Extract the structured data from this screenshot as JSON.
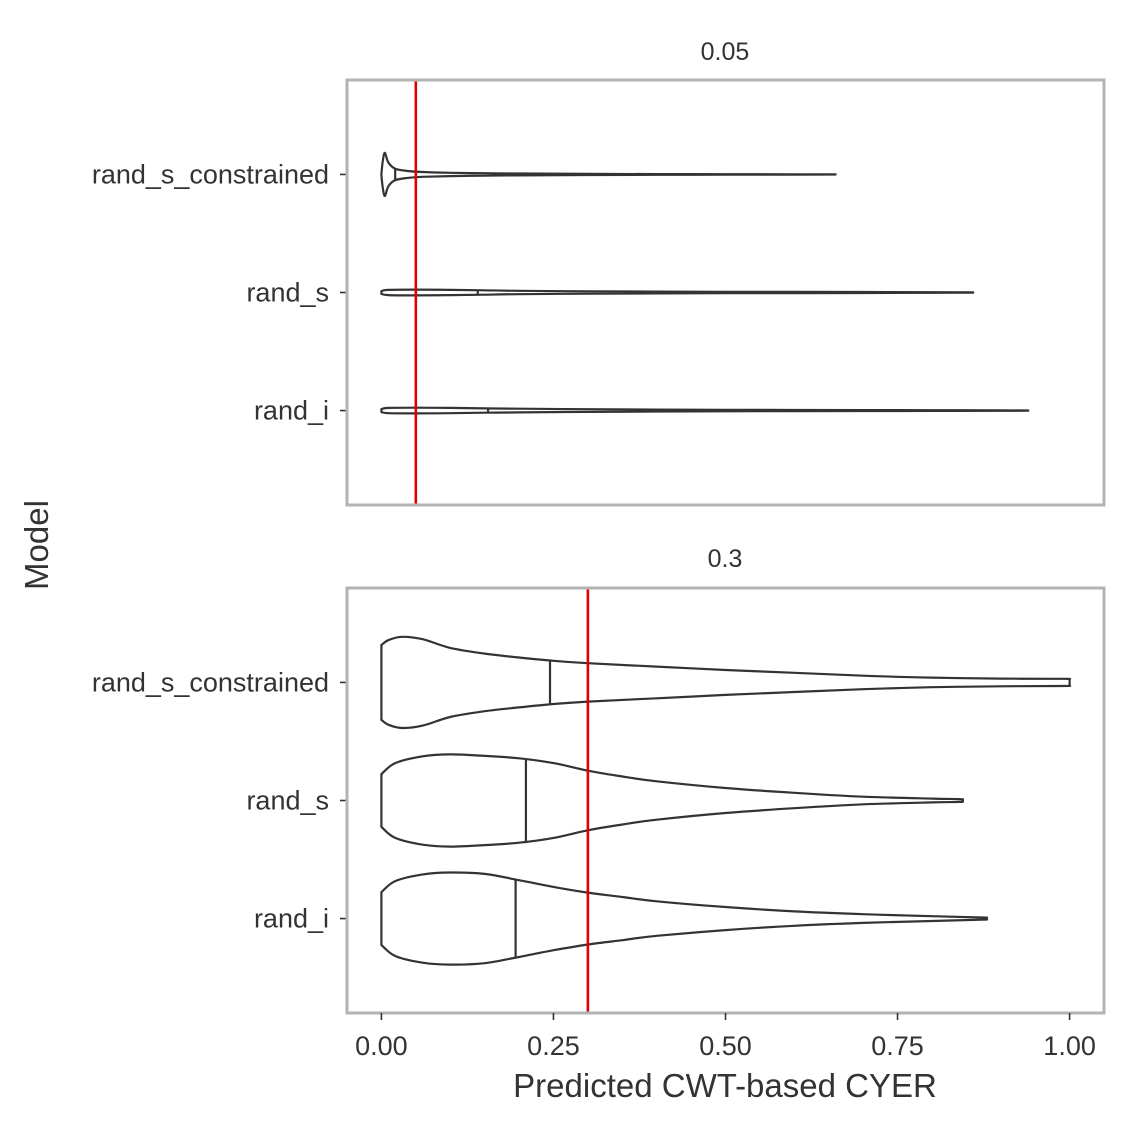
{
  "chart_data": {
    "type": "violin",
    "orientation": "horizontal",
    "xlabel": "Predicted CWT-based CYER",
    "ylabel": "Model",
    "xlim": [
      -0.05,
      1.05
    ],
    "x_ticks": [
      0.0,
      0.25,
      0.5,
      0.75,
      1.0
    ],
    "x_tick_labels": [
      "0.00",
      "0.25",
      "0.50",
      "0.75",
      "1.00"
    ],
    "categories": [
      "rand_s_constrained",
      "rand_s",
      "rand_i"
    ],
    "grid": false,
    "panels": [
      {
        "title": "0.05",
        "reference_line": 0.05,
        "reference_color": "#e00000",
        "violins": [
          {
            "category": "rand_s_constrained",
            "median": 0.02,
            "profile": [
              [
                0.0,
                0.01
              ],
              [
                0.002,
                0.28
              ],
              [
                0.005,
                0.45
              ],
              [
                0.01,
                0.25
              ],
              [
                0.02,
                0.12
              ],
              [
                0.04,
                0.07
              ],
              [
                0.06,
                0.05
              ],
              [
                0.1,
                0.035
              ],
              [
                0.15,
                0.025
              ],
              [
                0.2,
                0.02
              ],
              [
                0.3,
                0.012
              ],
              [
                0.4,
                0.008
              ],
              [
                0.5,
                0.006
              ],
              [
                0.6,
                0.004
              ],
              [
                0.66,
                0.002
              ]
            ]
          },
          {
            "category": "rand_s",
            "median": 0.14,
            "profile": [
              [
                0.0,
                0.03
              ],
              [
                0.01,
                0.055
              ],
              [
                0.05,
                0.06
              ],
              [
                0.1,
                0.055
              ],
              [
                0.15,
                0.045
              ],
              [
                0.2,
                0.035
              ],
              [
                0.3,
                0.025
              ],
              [
                0.4,
                0.018
              ],
              [
                0.5,
                0.015
              ],
              [
                0.6,
                0.012
              ],
              [
                0.7,
                0.01
              ],
              [
                0.8,
                0.007
              ],
              [
                0.86,
                0.003
              ]
            ]
          },
          {
            "category": "rand_i",
            "median": 0.155,
            "profile": [
              [
                0.0,
                0.03
              ],
              [
                0.01,
                0.055
              ],
              [
                0.05,
                0.06
              ],
              [
                0.1,
                0.055
              ],
              [
                0.15,
                0.045
              ],
              [
                0.2,
                0.038
              ],
              [
                0.3,
                0.028
              ],
              [
                0.4,
                0.02
              ],
              [
                0.5,
                0.015
              ],
              [
                0.6,
                0.012
              ],
              [
                0.7,
                0.01
              ],
              [
                0.8,
                0.008
              ],
              [
                0.9,
                0.005
              ],
              [
                0.94,
                0.002
              ]
            ]
          }
        ]
      },
      {
        "title": "0.3",
        "reference_line": 0.3,
        "reference_color": "#e00000",
        "violins": [
          {
            "category": "rand_s_constrained",
            "median": 0.245,
            "profile": [
              [
                0.0,
                0.78
              ],
              [
                0.01,
                0.88
              ],
              [
                0.03,
                0.95
              ],
              [
                0.06,
                0.9
              ],
              [
                0.1,
                0.72
              ],
              [
                0.15,
                0.6
              ],
              [
                0.2,
                0.52
              ],
              [
                0.25,
                0.45
              ],
              [
                0.3,
                0.4
              ],
              [
                0.4,
                0.33
              ],
              [
                0.5,
                0.26
              ],
              [
                0.6,
                0.2
              ],
              [
                0.7,
                0.14
              ],
              [
                0.8,
                0.1
              ],
              [
                0.9,
                0.08
              ],
              [
                0.99,
                0.075
              ],
              [
                1.0,
                0.07
              ]
            ]
          },
          {
            "category": "rand_s",
            "median": 0.21,
            "profile": [
              [
                0.0,
                0.55
              ],
              [
                0.02,
                0.78
              ],
              [
                0.06,
                0.92
              ],
              [
                0.1,
                0.96
              ],
              [
                0.15,
                0.93
              ],
              [
                0.2,
                0.88
              ],
              [
                0.25,
                0.78
              ],
              [
                0.3,
                0.62
              ],
              [
                0.35,
                0.5
              ],
              [
                0.4,
                0.4
              ],
              [
                0.5,
                0.26
              ],
              [
                0.6,
                0.16
              ],
              [
                0.7,
                0.08
              ],
              [
                0.8,
                0.04
              ],
              [
                0.84,
                0.03
              ],
              [
                0.845,
                0.02
              ]
            ]
          },
          {
            "category": "rand_i",
            "median": 0.195,
            "profile": [
              [
                0.0,
                0.55
              ],
              [
                0.02,
                0.78
              ],
              [
                0.06,
                0.92
              ],
              [
                0.1,
                0.96
              ],
              [
                0.15,
                0.93
              ],
              [
                0.2,
                0.8
              ],
              [
                0.25,
                0.66
              ],
              [
                0.3,
                0.54
              ],
              [
                0.35,
                0.45
              ],
              [
                0.4,
                0.36
              ],
              [
                0.5,
                0.24
              ],
              [
                0.6,
                0.15
              ],
              [
                0.7,
                0.09
              ],
              [
                0.8,
                0.05
              ],
              [
                0.88,
                0.02
              ]
            ]
          }
        ]
      }
    ]
  }
}
